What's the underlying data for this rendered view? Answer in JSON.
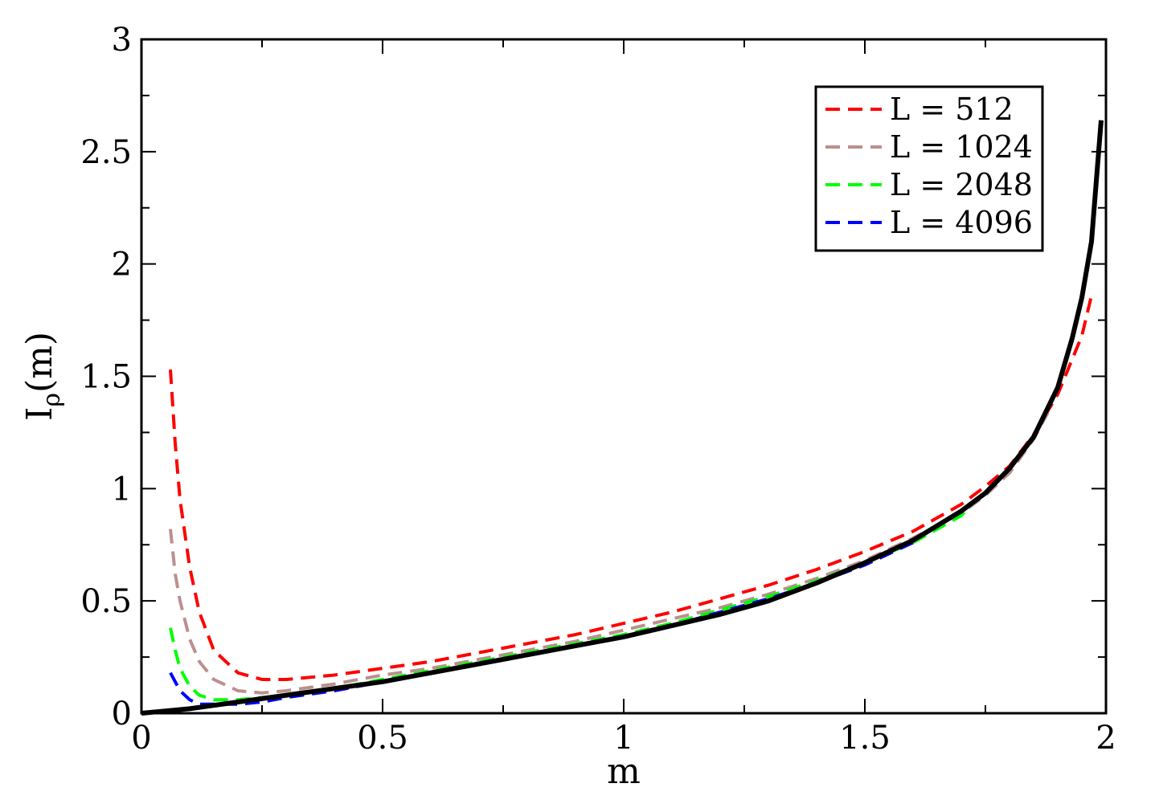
{
  "chart_data": {
    "type": "line",
    "title": "",
    "xlabel": "m",
    "ylabel": {
      "main": "I",
      "sub": "ρ",
      "suffix": "(m)"
    },
    "xlim": [
      0,
      2
    ],
    "ylim": [
      0,
      3
    ],
    "x_ticks": [
      0,
      0.5,
      1,
      1.5,
      2
    ],
    "x_tick_labels": [
      "0",
      "0.5",
      "1",
      "1.5",
      "2"
    ],
    "y_ticks": [
      0,
      0.5,
      1,
      1.5,
      2,
      2.5,
      3
    ],
    "y_tick_labels": [
      "0",
      "0.5",
      "1",
      "1.5",
      "2",
      "2.5",
      "3"
    ],
    "grid": false,
    "legend_position": "top-right",
    "series": [
      {
        "name": "L = 512",
        "color": "#ff0000",
        "style": "dashed",
        "x": [
          0.06,
          0.07,
          0.08,
          0.1,
          0.12,
          0.15,
          0.2,
          0.25,
          0.3,
          0.4,
          0.5,
          0.6,
          0.7,
          0.8,
          0.9,
          1.0,
          1.1,
          1.2,
          1.3,
          1.4,
          1.5,
          1.6,
          1.7,
          1.75,
          1.8,
          1.85,
          1.9,
          1.95,
          1.97
        ],
        "y": [
          1.53,
          1.2,
          0.95,
          0.65,
          0.45,
          0.28,
          0.18,
          0.15,
          0.15,
          0.17,
          0.2,
          0.23,
          0.27,
          0.31,
          0.35,
          0.4,
          0.45,
          0.51,
          0.57,
          0.64,
          0.72,
          0.81,
          0.93,
          1.01,
          1.1,
          1.24,
          1.42,
          1.68,
          1.86
        ]
      },
      {
        "name": "L = 1024",
        "color": "#bc8f8f",
        "style": "dashed",
        "x": [
          0.06,
          0.07,
          0.08,
          0.1,
          0.12,
          0.15,
          0.2,
          0.25,
          0.3,
          0.4,
          0.5,
          0.6,
          0.7,
          0.8,
          0.9,
          1.0,
          1.1,
          1.2,
          1.3,
          1.4,
          1.5,
          1.6,
          1.7,
          1.75,
          1.8,
          1.85,
          1.88
        ],
        "y": [
          0.82,
          0.62,
          0.5,
          0.33,
          0.23,
          0.15,
          0.1,
          0.09,
          0.1,
          0.13,
          0.17,
          0.2,
          0.24,
          0.28,
          0.32,
          0.37,
          0.42,
          0.47,
          0.53,
          0.6,
          0.68,
          0.78,
          0.89,
          0.97,
          1.07,
          1.22,
          1.34
        ]
      },
      {
        "name": "L = 2048",
        "color": "#00ff00",
        "style": "dashed",
        "x": [
          0.06,
          0.07,
          0.08,
          0.1,
          0.12,
          0.15,
          0.2,
          0.25,
          0.3,
          0.4,
          0.5,
          0.6,
          0.7,
          0.8,
          0.9,
          1.0,
          1.1,
          1.2,
          1.3,
          1.4,
          1.5,
          1.6,
          1.7,
          1.73
        ],
        "y": [
          0.38,
          0.28,
          0.2,
          0.12,
          0.08,
          0.06,
          0.06,
          0.07,
          0.08,
          0.11,
          0.15,
          0.19,
          0.23,
          0.27,
          0.31,
          0.35,
          0.4,
          0.46,
          0.52,
          0.59,
          0.67,
          0.76,
          0.88,
          0.95
        ]
      },
      {
        "name": "L = 4096",
        "color": "#0000ff",
        "style": "dashed",
        "x": [
          0.06,
          0.07,
          0.08,
          0.1,
          0.12,
          0.15,
          0.2,
          0.25,
          0.3,
          0.4,
          0.5,
          0.6,
          0.7,
          0.8,
          0.9,
          1.0,
          1.1,
          1.2,
          1.3,
          1.4,
          1.5,
          1.6
        ],
        "y": [
          0.18,
          0.14,
          0.1,
          0.06,
          0.04,
          0.04,
          0.04,
          0.05,
          0.07,
          0.1,
          0.14,
          0.18,
          0.22,
          0.26,
          0.3,
          0.34,
          0.39,
          0.45,
          0.51,
          0.58,
          0.66,
          0.76
        ]
      },
      {
        "name": "",
        "color": "#000000",
        "style": "solid",
        "x": [
          0,
          0.05,
          0.1,
          0.2,
          0.3,
          0.4,
          0.5,
          0.6,
          0.7,
          0.8,
          0.9,
          1.0,
          1.1,
          1.2,
          1.3,
          1.4,
          1.5,
          1.6,
          1.7,
          1.75,
          1.8,
          1.85,
          1.9,
          1.93,
          1.95,
          1.97,
          1.99
        ],
        "y": [
          0,
          0.01,
          0.02,
          0.05,
          0.08,
          0.11,
          0.14,
          0.18,
          0.22,
          0.26,
          0.3,
          0.34,
          0.39,
          0.44,
          0.5,
          0.58,
          0.67,
          0.77,
          0.9,
          0.98,
          1.09,
          1.23,
          1.45,
          1.67,
          1.85,
          2.1,
          2.64
        ]
      }
    ]
  }
}
